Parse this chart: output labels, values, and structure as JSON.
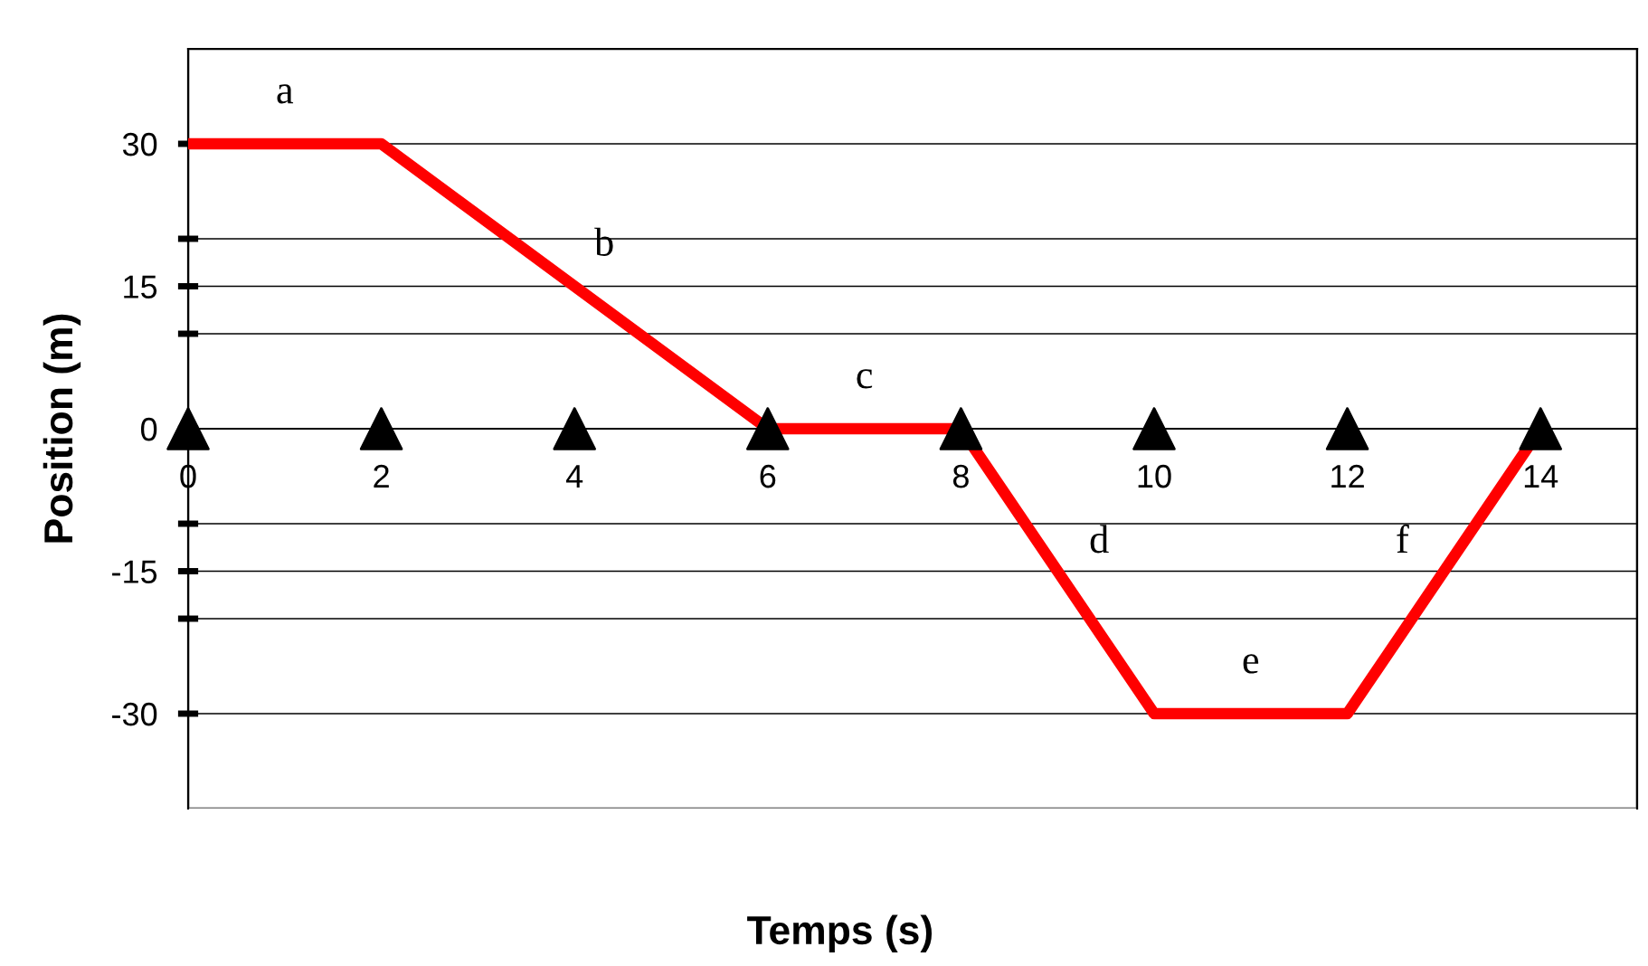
{
  "chart_data": {
    "type": "line",
    "xlabel": "Temps (s)",
    "ylabel": "Position (m)",
    "xlim": [
      0,
      15
    ],
    "ylim": [
      -40,
      40
    ],
    "xticks": [
      0,
      2,
      4,
      6,
      8,
      10,
      12,
      14
    ],
    "yticks": [
      30,
      {
        "value": 20,
        "label": null
      },
      15,
      {
        "value": 10,
        "label": null
      },
      0,
      {
        "value": -10,
        "label": null
      },
      -15,
      {
        "value": -20,
        "label": null
      },
      -30
    ],
    "grid": "y",
    "legend": false,
    "series": [
      {
        "color": "#ff0000",
        "marker": "none",
        "x": [
          0,
          2,
          6,
          8,
          10,
          12,
          14
        ],
        "values": [
          30,
          30,
          0,
          0,
          -30,
          -30,
          0
        ]
      },
      {
        "type": "scatter",
        "color": "#000000",
        "marker": "triangle",
        "x": [
          0,
          2,
          4,
          6,
          8,
          10,
          12,
          14
        ],
        "values": [
          0,
          0,
          0,
          0,
          0,
          0,
          0,
          0
        ]
      }
    ],
    "annotations": [
      "a",
      "b",
      "c",
      "d",
      "e",
      "f"
    ]
  }
}
